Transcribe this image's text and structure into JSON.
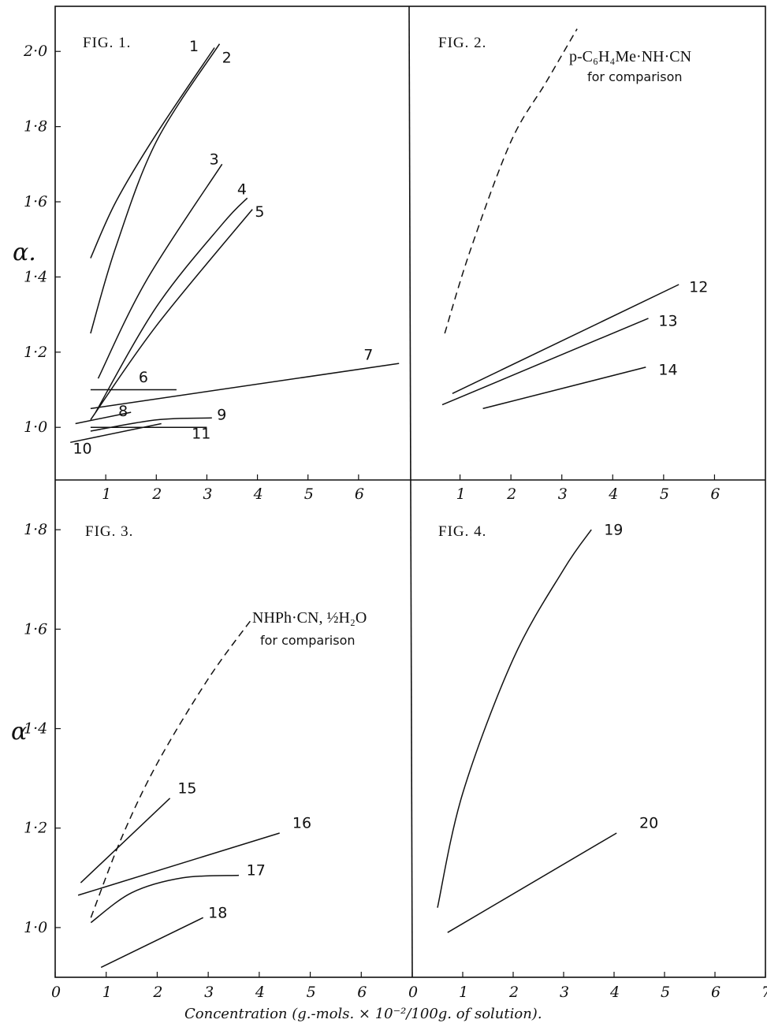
{
  "chart_data": [
    {
      "type": "line",
      "title": "FIG. 1.",
      "ylabel": "α.",
      "xlim": [
        0,
        7
      ],
      "ylim": [
        0.86,
        2.12
      ],
      "yticks": [
        "1·0",
        "1·2",
        "1·4",
        "1·6",
        "1·8",
        "2·0"
      ],
      "yticks_values": [
        1.0,
        1.2,
        1.4,
        1.6,
        1.8,
        2.0
      ],
      "xticks": [
        "1",
        "2",
        "3",
        "4",
        "5",
        "6"
      ],
      "xticks_values": [
        1,
        2,
        3,
        4,
        5,
        6
      ],
      "series": [
        {
          "name": "1",
          "label_at": [
            2.65,
            2.0
          ],
          "points": [
            [
              0.7,
              1.45
            ],
            [
              1.2,
              1.6
            ],
            [
              2.0,
              1.78
            ],
            [
              3.15,
              2.01
            ]
          ]
        },
        {
          "name": "2",
          "label_at": [
            3.3,
            1.97
          ],
          "points": [
            [
              0.7,
              1.25
            ],
            [
              1.2,
              1.48
            ],
            [
              2.0,
              1.76
            ],
            [
              3.25,
              2.02
            ]
          ]
        },
        {
          "name": "3",
          "label_at": [
            3.05,
            1.7
          ],
          "points": [
            [
              0.85,
              1.13
            ],
            [
              1.8,
              1.39
            ],
            [
              3.3,
              1.7
            ]
          ]
        },
        {
          "name": "4",
          "label_at": [
            3.6,
            1.62
          ],
          "points": [
            [
              0.8,
              1.04
            ],
            [
              2.0,
              1.32
            ],
            [
              3.3,
              1.54
            ],
            [
              3.8,
              1.61
            ]
          ]
        },
        {
          "name": "5",
          "label_at": [
            3.95,
            1.56
          ],
          "points": [
            [
              0.7,
              1.02
            ],
            [
              2.0,
              1.27
            ],
            [
              3.9,
              1.58
            ]
          ]
        },
        {
          "name": "6",
          "label_at": [
            1.65,
            1.12
          ],
          "points": [
            [
              0.7,
              1.1
            ],
            [
              2.4,
              1.1
            ]
          ]
        },
        {
          "name": "7",
          "label_at": [
            6.1,
            1.18
          ],
          "points": [
            [
              0.7,
              1.05
            ],
            [
              6.8,
              1.17
            ]
          ]
        },
        {
          "name": "8",
          "label_at": [
            1.25,
            1.03
          ],
          "points": [
            [
              0.4,
              1.01
            ],
            [
              1.5,
              1.04
            ]
          ]
        },
        {
          "name": "9",
          "label_at": [
            3.2,
            1.02
          ],
          "points": [
            [
              0.7,
              0.99
            ],
            [
              2.0,
              1.02
            ],
            [
              3.1,
              1.025
            ]
          ]
        },
        {
          "name": "10",
          "label_at": [
            0.35,
            0.93
          ],
          "points": [
            [
              0.3,
              0.96
            ],
            [
              2.1,
              1.01
            ]
          ]
        },
        {
          "name": "11",
          "label_at": [
            2.7,
            0.97
          ],
          "points": [
            [
              0.7,
              1.0
            ],
            [
              3.0,
              1.0
            ]
          ]
        }
      ]
    },
    {
      "type": "line",
      "title": "FIG. 2.",
      "ylabel": "",
      "xlim": [
        0,
        7
      ],
      "ylim": [
        0.86,
        2.12
      ],
      "xticks": [
        "1",
        "2",
        "3",
        "4",
        "5",
        "6"
      ],
      "xticks_values": [
        1,
        2,
        3,
        4,
        5,
        6
      ],
      "annotation": {
        "line1": "p-C₆H₄Me·NH·CN",
        "line2": "for comparison"
      },
      "series": [
        {
          "name": "p-C₆H₄Me·NH·CN",
          "dashed": true,
          "points": [
            [
              0.7,
              1.25
            ],
            [
              1.2,
              1.47
            ],
            [
              2.0,
              1.76
            ],
            [
              2.7,
              1.92
            ],
            [
              3.3,
              2.06
            ]
          ]
        },
        {
          "name": "12",
          "label_at": [
            5.5,
            1.36
          ],
          "points": [
            [
              0.85,
              1.09
            ],
            [
              5.3,
              1.38
            ]
          ]
        },
        {
          "name": "13",
          "label_at": [
            4.9,
            1.27
          ],
          "points": [
            [
              0.65,
              1.06
            ],
            [
              4.7,
              1.29
            ]
          ]
        },
        {
          "name": "14",
          "label_at": [
            4.9,
            1.14
          ],
          "points": [
            [
              1.45,
              1.05
            ],
            [
              4.65,
              1.16
            ]
          ]
        }
      ]
    },
    {
      "type": "line",
      "title": "FIG. 3.",
      "ylabel": "α",
      "xlabel": "Concentration (g.-mols. × 10⁻²/100g. of solution).",
      "xlim": [
        0,
        7
      ],
      "ylim": [
        0.9,
        1.9
      ],
      "yticks": [
        "1·0",
        "1·2",
        "1·4",
        "1·6",
        "1·8"
      ],
      "yticks_values": [
        1.0,
        1.2,
        1.4,
        1.6,
        1.8
      ],
      "xticks": [
        "0",
        "1",
        "2",
        "3",
        "4",
        "5",
        "6"
      ],
      "xticks_values": [
        0,
        1,
        2,
        3,
        4,
        5,
        6
      ],
      "annotation": {
        "line1": "NHPh·CN, ½H₂O",
        "line2": "for comparison"
      },
      "series": [
        {
          "name": "NHPh·CN, ½H₂O",
          "dashed": true,
          "points": [
            [
              0.7,
              1.02
            ],
            [
              1.3,
              1.18
            ],
            [
              2.0,
              1.33
            ],
            [
              3.0,
              1.5
            ],
            [
              3.85,
              1.62
            ]
          ]
        },
        {
          "name": "15",
          "label_at": [
            2.4,
            1.27
          ],
          "points": [
            [
              0.5,
              1.09
            ],
            [
              2.25,
              1.26
            ]
          ]
        },
        {
          "name": "16",
          "label_at": [
            4.65,
            1.2
          ],
          "points": [
            [
              0.45,
              1.065
            ],
            [
              4.4,
              1.19
            ]
          ]
        },
        {
          "name": "17",
          "label_at": [
            3.75,
            1.105
          ],
          "points": [
            [
              0.7,
              1.01
            ],
            [
              1.5,
              1.07
            ],
            [
              2.5,
              1.1
            ],
            [
              3.6,
              1.105
            ]
          ]
        },
        {
          "name": "18",
          "label_at": [
            3.0,
            1.02
          ],
          "points": [
            [
              0.9,
              0.92
            ],
            [
              2.9,
              1.02
            ]
          ]
        }
      ]
    },
    {
      "type": "line",
      "title": "FIG. 4.",
      "ylabel": "",
      "xlim": [
        0,
        7
      ],
      "ylim": [
        0.9,
        1.9
      ],
      "xticks": [
        "0",
        "1",
        "2",
        "3",
        "4",
        "5",
        "6",
        "7"
      ],
      "xticks_values": [
        0,
        1,
        2,
        3,
        4,
        5,
        6,
        7
      ],
      "series": [
        {
          "name": "19",
          "label_at": [
            3.8,
            1.79
          ],
          "points": [
            [
              0.5,
              1.04
            ],
            [
              1.0,
              1.27
            ],
            [
              2.0,
              1.54
            ],
            [
              3.0,
              1.72
            ],
            [
              3.55,
              1.8
            ]
          ]
        },
        {
          "name": "20",
          "label_at": [
            4.5,
            1.2
          ],
          "points": [
            [
              0.7,
              0.99
            ],
            [
              4.05,
              1.19
            ]
          ]
        }
      ]
    }
  ]
}
